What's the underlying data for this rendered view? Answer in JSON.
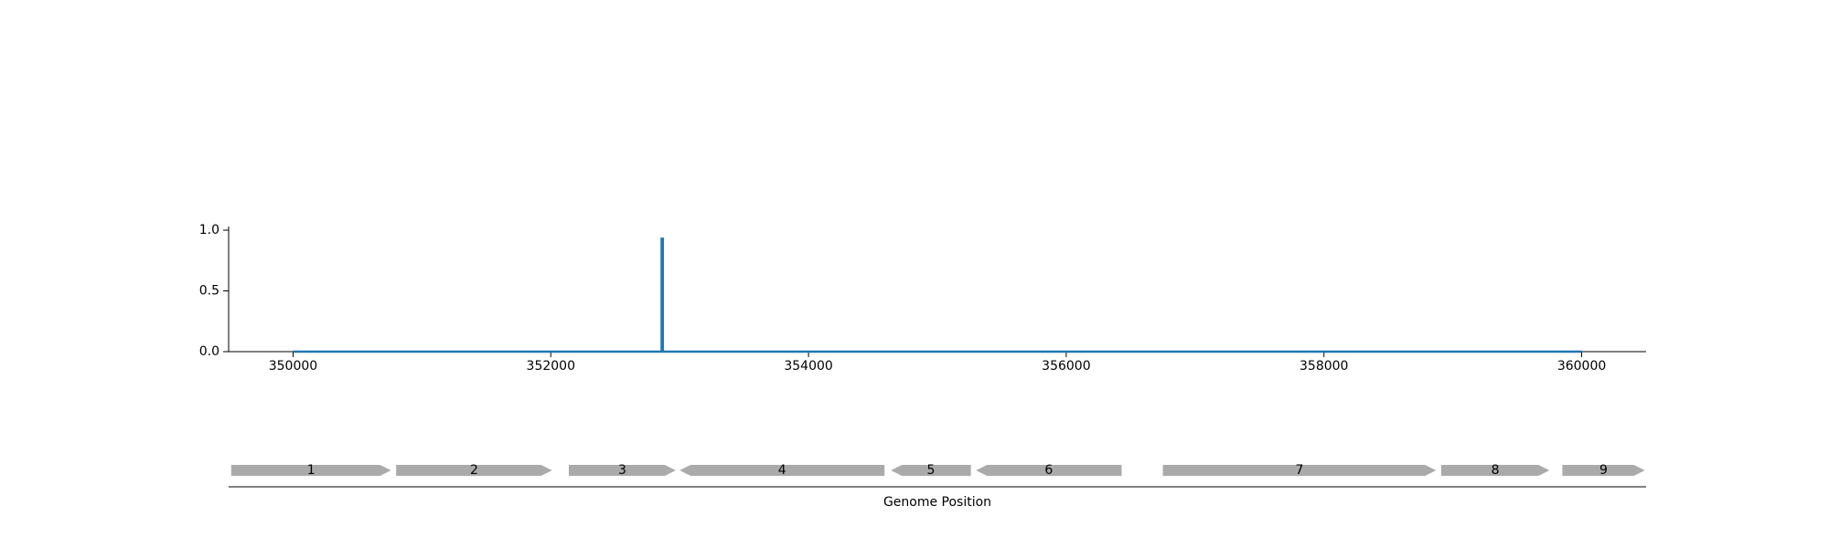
{
  "chart_data": {
    "type": "line",
    "title": "",
    "xlabel": "Genome Position",
    "ylabel": "",
    "xlim": [
      349500,
      360500
    ],
    "ylim": [
      0,
      1.03
    ],
    "x_ticks": [
      350000,
      352000,
      354000,
      356000,
      358000,
      360000
    ],
    "x_tick_labels": [
      "350000",
      "352000",
      "354000",
      "356000",
      "358000",
      "360000"
    ],
    "y_ticks": [
      0.0,
      0.5,
      1.0
    ],
    "y_tick_labels": [
      "0.0",
      "0.5",
      "1.0"
    ],
    "grid": false,
    "legend": "none",
    "series": [
      {
        "color": "#1f77b4",
        "x": [
          350000,
          352860,
          352860,
          352870,
          352870,
          360000
        ],
        "y": [
          0,
          0,
          0.93,
          0.93,
          0,
          0
        ]
      }
    ],
    "genes": [
      {
        "label": "1",
        "start": 349520,
        "end": 350760,
        "strand": "+"
      },
      {
        "label": "2",
        "start": 350800,
        "end": 352010,
        "strand": "+"
      },
      {
        "label": "3",
        "start": 352140,
        "end": 352970,
        "strand": "+"
      },
      {
        "label": "4",
        "start": 353000,
        "end": 354590,
        "strand": "-"
      },
      {
        "label": "5",
        "start": 354640,
        "end": 355260,
        "strand": "-"
      },
      {
        "label": "6",
        "start": 355300,
        "end": 356430,
        "strand": "-"
      },
      {
        "label": "7",
        "start": 356750,
        "end": 358870,
        "strand": "+"
      },
      {
        "label": "8",
        "start": 358910,
        "end": 359750,
        "strand": "+"
      },
      {
        "label": "9",
        "start": 359850,
        "end": 360490,
        "strand": "+"
      }
    ],
    "gene_color": "#aaaaaa"
  }
}
